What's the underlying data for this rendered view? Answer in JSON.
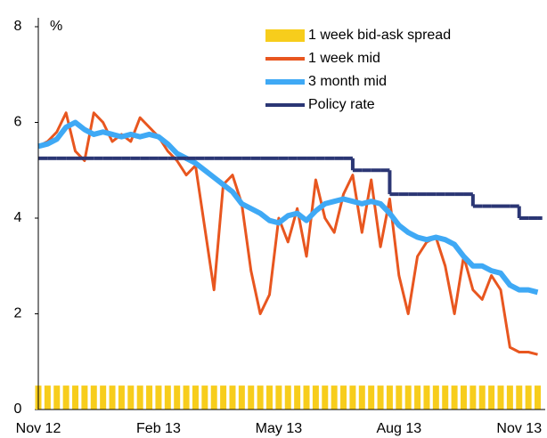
{
  "chart_data": {
    "type": "line",
    "y_label": "%",
    "categories": [
      "Nov 12",
      null,
      null,
      null,
      null,
      null,
      null,
      null,
      null,
      null,
      null,
      null,
      null,
      "Feb 13",
      null,
      null,
      null,
      null,
      null,
      null,
      null,
      null,
      null,
      null,
      null,
      null,
      "May 13",
      null,
      null,
      null,
      null,
      null,
      null,
      null,
      null,
      null,
      null,
      null,
      null,
      "Aug 13",
      null,
      null,
      null,
      null,
      null,
      null,
      null,
      null,
      null,
      null,
      null,
      null,
      "Nov 13",
      null,
      null
    ],
    "ylim": [
      0,
      8
    ],
    "yticks": [
      0,
      2,
      4,
      6,
      8
    ],
    "grid": false,
    "legend": "top-right",
    "series": [
      {
        "name": "1 week bid-ask spread",
        "type": "bar",
        "color": "#f7cd1c",
        "values": [
          0.5,
          0.5,
          0.5,
          0.5,
          0.5,
          0.5,
          0.5,
          0.5,
          0.5,
          0.5,
          0.5,
          0.5,
          0.5,
          0.5,
          0.5,
          0.5,
          0.5,
          0.5,
          0.5,
          0.5,
          0.5,
          0.5,
          0.5,
          0.5,
          0.5,
          0.5,
          0.5,
          0.5,
          0.5,
          0.5,
          0.5,
          0.5,
          0.5,
          0.5,
          0.5,
          0.5,
          0.5,
          0.5,
          0.5,
          0.5,
          0.5,
          0.5,
          0.5,
          0.5,
          0.5,
          0.5,
          0.5,
          0.5,
          0.5,
          0.5,
          0.5,
          0.5,
          0.5,
          0.5,
          0.5
        ]
      },
      {
        "name": "1 week mid",
        "type": "line",
        "color": "#e8561f",
        "values": [
          5.5,
          5.6,
          5.8,
          6.2,
          5.4,
          5.2,
          6.2,
          6.0,
          5.6,
          5.75,
          5.6,
          6.1,
          5.9,
          5.7,
          5.4,
          5.2,
          4.9,
          5.1,
          3.8,
          2.5,
          4.7,
          4.9,
          4.3,
          2.9,
          2.0,
          2.4,
          4.0,
          3.5,
          4.2,
          3.2,
          4.8,
          4.0,
          3.7,
          4.5,
          4.9,
          3.7,
          4.8,
          3.4,
          4.4,
          2.8,
          2.0,
          3.2,
          3.5,
          3.6,
          3.0,
          2.0,
          3.2,
          2.5,
          2.3,
          2.8,
          2.5,
          1.3,
          1.2,
          1.2,
          1.15
        ]
      },
      {
        "name": "3 month mid",
        "type": "line",
        "color": "#3fa9f5",
        "values": [
          5.5,
          5.55,
          5.65,
          5.9,
          6.0,
          5.85,
          5.75,
          5.8,
          5.75,
          5.7,
          5.75,
          5.7,
          5.75,
          5.7,
          5.55,
          5.35,
          5.25,
          5.15,
          5.0,
          4.85,
          4.7,
          4.55,
          4.3,
          4.2,
          4.1,
          3.95,
          3.9,
          4.05,
          4.1,
          3.95,
          4.15,
          4.3,
          4.35,
          4.4,
          4.35,
          4.3,
          4.35,
          4.3,
          4.1,
          3.85,
          3.7,
          3.6,
          3.55,
          3.6,
          3.55,
          3.45,
          3.2,
          3.0,
          3.0,
          2.9,
          2.85,
          2.6,
          2.5,
          2.5,
          2.45
        ]
      },
      {
        "name": "Policy rate",
        "type": "step",
        "color": "#2b3674",
        "values": [
          5.25,
          5.25,
          5.25,
          5.25,
          5.25,
          5.25,
          5.25,
          5.25,
          5.25,
          5.25,
          5.25,
          5.25,
          5.25,
          5.25,
          5.25,
          5.25,
          5.25,
          5.25,
          5.25,
          5.25,
          5.25,
          5.25,
          5.25,
          5.25,
          5.25,
          5.25,
          5.25,
          5.25,
          5.25,
          5.25,
          5.25,
          5.25,
          5.25,
          5.25,
          5.0,
          5.0,
          5.0,
          5.0,
          4.5,
          4.5,
          4.5,
          4.5,
          4.5,
          4.5,
          4.5,
          4.5,
          4.5,
          4.25,
          4.25,
          4.25,
          4.25,
          4.25,
          4.0,
          4.0,
          4.0
        ]
      }
    ]
  }
}
